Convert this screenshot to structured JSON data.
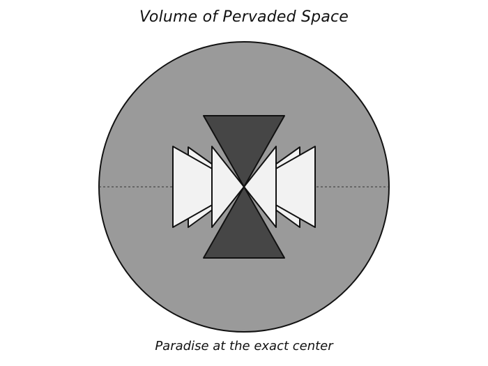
{
  "title": "Volume of Pervaded Space",
  "caption": "Paradise at the exact center",
  "colors": {
    "sphere_fill": "#9a9a9a",
    "dark_cone": "#464646",
    "light_wedge": "#f2f2f2",
    "outline": "#111111"
  }
}
